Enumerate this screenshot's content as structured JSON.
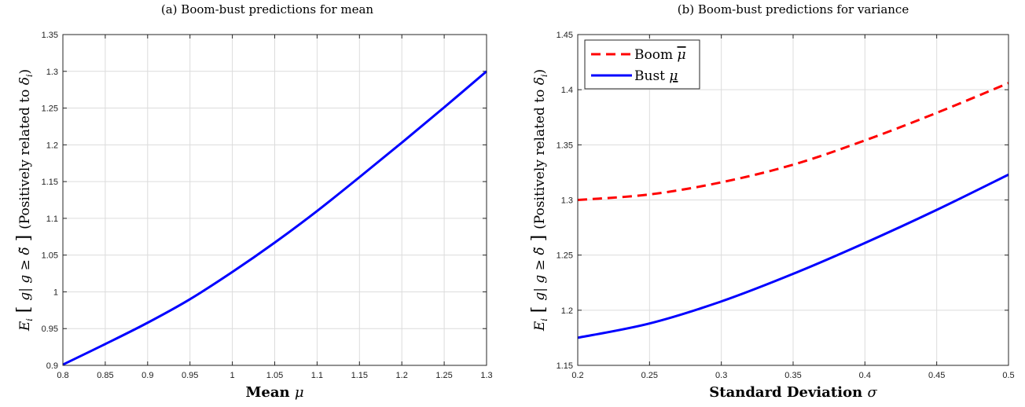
{
  "chart_data": [
    {
      "type": "line",
      "title": "(a) Boom-bust predictions for mean",
      "xlabel": "Mean μ",
      "ylabel": "E_i [ g| g ≥ δ̃ ] (Positively related to δ_i)",
      "xlim": [
        0.8,
        1.3
      ],
      "ylim": [
        0.9,
        1.35
      ],
      "xticks": [
        "0.8",
        "0.85",
        "0.9",
        "0.95",
        "1",
        "1.05",
        "1.1",
        "1.15",
        "1.2",
        "1.25",
        "1.3"
      ],
      "yticks": [
        "0.9",
        "0.95",
        "1",
        "1.05",
        "1.1",
        "1.15",
        "1.2",
        "1.25",
        "1.3",
        "1.35"
      ],
      "grid": true,
      "series": [
        {
          "color": "#0000ff",
          "style": "solid",
          "x": [
            0.8,
            0.85,
            0.9,
            0.95,
            1.0,
            1.05,
            1.1,
            1.15,
            1.2,
            1.25,
            1.3
          ],
          "y": [
            0.901,
            0.929,
            0.958,
            0.99,
            1.027,
            1.067,
            1.11,
            1.156,
            1.203,
            1.251,
            1.3
          ]
        }
      ]
    },
    {
      "type": "line",
      "title": "(b) Boom-bust predictions for variance",
      "xlabel": "Standard Deviation σ",
      "ylabel": "E_i [ g| g ≥ δ̃ ] (Positively related to δ_i)",
      "xlim": [
        0.2,
        0.5
      ],
      "ylim": [
        1.15,
        1.45
      ],
      "xticks": [
        "0.2",
        "0.25",
        "0.3",
        "0.35",
        "0.4",
        "0.45",
        "0.5"
      ],
      "yticks": [
        "1.15",
        "1.2",
        "1.25",
        "1.3",
        "1.35",
        "1.4",
        "1.45"
      ],
      "grid": true,
      "legend": "top-left",
      "series": [
        {
          "name": "Boom μ̄",
          "color": "#ff0000",
          "style": "dashed",
          "x": [
            0.2,
            0.25,
            0.3,
            0.35,
            0.4,
            0.45,
            0.5
          ],
          "y": [
            1.3,
            1.305,
            1.316,
            1.332,
            1.354,
            1.379,
            1.406
          ]
        },
        {
          "name": "Bust μ",
          "color": "#0000ff",
          "style": "solid",
          "x": [
            0.2,
            0.25,
            0.3,
            0.35,
            0.4,
            0.45,
            0.5
          ],
          "y": [
            1.175,
            1.188,
            1.208,
            1.233,
            1.261,
            1.291,
            1.323
          ]
        }
      ]
    }
  ]
}
